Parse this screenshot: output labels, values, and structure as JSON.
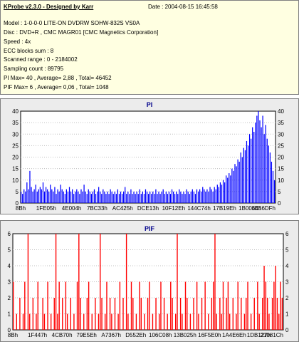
{
  "info": {
    "title": "KProbe v2.3.0 - Designed by Karr",
    "date": "Date : 2004-08-15 16:45:58",
    "model": "Model : 1-0-0-0 LITE-ON DVDRW SOHW-832S  VS0A",
    "disc": "Disc : DVD+R , CMC MAGR01 [CMC Magnetics Corporation]",
    "speed": "Speed : 4x",
    "ecc": "ECC blocks sum : 8",
    "scanned": "Scanned range : 0 - 2184002",
    "sampling": "Sampling count : 89795",
    "pi_stats": "PI Max= 40 , Average= 2,88 , Total= 46452",
    "pif_stats": "PIF Max= 6 , Average= 0,06 , Total= 1048"
  },
  "chart_data": [
    {
      "type": "bar",
      "title": "PI",
      "ylim": [
        0,
        40
      ],
      "yticks": [
        "0",
        "5",
        "10",
        "15",
        "20",
        "25",
        "30",
        "35",
        "40"
      ],
      "xticks": [
        "8Bh",
        "1FE05h",
        "4E004h",
        "7BC33h",
        "AC425h",
        "DCE13h",
        "10F12Eh",
        "144C74h",
        "17B19Eh",
        "1B0064h",
        "1E56DFh"
      ],
      "color": "#0000ff",
      "series": [
        {
          "values": [
            5,
            4,
            6,
            5,
            9,
            6,
            14,
            7,
            5,
            6,
            8,
            5,
            6,
            7,
            6,
            9,
            5,
            7,
            6,
            5,
            8,
            6,
            5,
            7,
            4,
            6,
            5,
            8,
            6,
            5,
            4,
            6,
            5,
            7,
            5,
            6,
            4,
            5,
            6,
            5,
            4,
            6,
            5,
            8,
            5,
            4,
            6,
            5,
            4,
            5,
            6,
            4,
            5,
            7,
            5,
            4,
            6,
            5,
            4,
            5,
            4,
            6,
            5,
            4,
            5,
            4,
            6,
            4,
            5,
            4,
            5,
            7,
            4,
            5,
            4,
            6,
            4,
            5,
            4,
            5,
            4,
            6,
            4,
            5,
            4,
            6,
            5,
            4,
            5,
            4,
            5,
            4,
            6,
            4,
            5,
            4,
            5,
            6,
            4,
            5,
            4,
            5,
            4,
            6,
            5,
            4,
            5,
            4,
            6,
            5,
            4,
            5,
            4,
            6,
            5,
            4,
            5,
            6,
            5,
            4,
            6,
            5,
            6,
            5,
            7,
            6,
            5,
            6,
            5,
            7,
            6,
            5,
            7,
            6,
            8,
            7,
            9,
            8,
            10,
            9,
            12,
            11,
            13,
            12,
            15,
            14,
            17,
            16,
            19,
            18,
            22,
            20,
            24,
            23,
            27,
            25,
            30,
            28,
            33,
            31,
            35,
            38,
            40,
            36,
            33,
            38,
            30,
            34,
            28,
            25,
            22,
            18,
            14,
            10
          ]
        }
      ]
    },
    {
      "type": "bar",
      "title": "PIF",
      "ylim": [
        0,
        6
      ],
      "yticks": [
        "0",
        "1",
        "2",
        "3",
        "4",
        "5",
        "6"
      ],
      "xticks": [
        "8Bh",
        "1F447h",
        "4CB70h",
        "79E5Eh",
        "A7367h",
        "D552Eh",
        "106C08h",
        "13B025h",
        "16F5E0h",
        "1A4E6Eh",
        "1DB127h",
        "21081Ch"
      ],
      "color": "#ff0000",
      "series": [
        {
          "values": [
            3,
            0,
            1,
            0,
            2,
            0,
            1,
            3,
            0,
            6,
            1,
            0,
            2,
            0,
            1,
            3,
            0,
            0,
            2,
            1,
            0,
            3,
            0,
            1,
            0,
            2,
            6,
            1,
            3,
            0,
            2,
            0,
            3,
            1,
            0,
            2,
            0,
            1,
            0,
            3,
            6,
            2,
            0,
            1,
            0,
            2,
            3,
            0,
            1,
            0,
            2,
            0,
            1,
            6,
            2,
            0,
            1,
            3,
            0,
            2,
            1,
            0,
            2,
            0,
            1,
            3,
            0,
            2,
            0,
            6,
            1,
            0,
            3,
            2,
            0,
            1,
            0,
            3,
            2,
            0,
            1,
            0,
            2,
            3,
            0,
            1,
            0,
            2,
            0,
            1,
            3,
            0,
            2,
            0,
            1,
            0,
            3,
            2,
            0,
            1,
            6,
            0,
            2,
            1,
            0,
            3,
            2,
            0,
            1,
            0,
            2,
            0,
            3,
            1,
            0,
            2,
            0,
            3,
            0,
            1,
            0,
            2,
            3,
            6,
            1,
            0,
            2,
            1,
            3,
            0,
            2,
            3,
            1,
            0,
            2,
            0,
            1,
            3,
            0,
            2,
            0,
            1,
            2,
            3,
            0,
            1,
            0,
            2,
            0,
            3,
            1,
            0,
            2,
            4,
            3,
            2,
            1,
            0,
            2,
            3,
            4,
            2,
            1,
            3,
            2
          ]
        }
      ]
    }
  ]
}
